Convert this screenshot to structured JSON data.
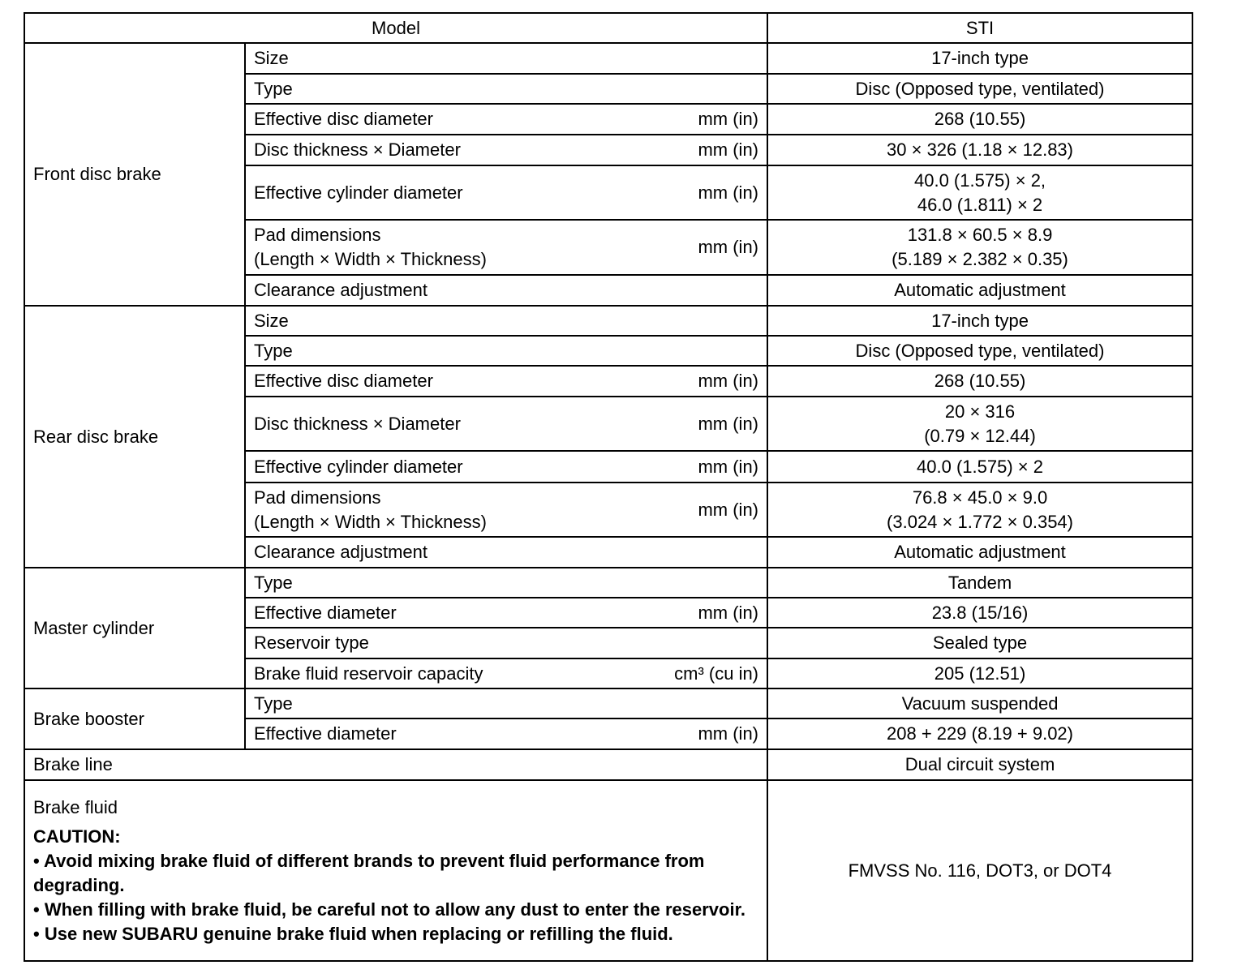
{
  "header": {
    "model_label": "Model",
    "model_value": "STI"
  },
  "sections": [
    {
      "group": "Front disc brake",
      "rows": [
        {
          "label": "Size",
          "unit": "",
          "value": "17-inch type",
          "h": 38
        },
        {
          "label": "Type",
          "unit": "",
          "value": "Disc (Opposed type, ventilated)",
          "h": 37
        },
        {
          "label": "Effective disc diameter",
          "unit": "mm (in)",
          "value": "268 (10.55)",
          "h": 38
        },
        {
          "label": "Disc thickness × Diameter",
          "unit": "mm (in)",
          "value": "30 × 326 (1.18 × 12.83)",
          "h": 38
        },
        {
          "label": "Effective cylinder diameter",
          "unit": "mm (in)",
          "value": "40.0 (1.575) × 2,\n46.0 (1.811) × 2",
          "h": 67
        },
        {
          "label": "Pad dimensions\n(Length × Width × Thickness)",
          "unit": "mm (in)",
          "value": "131.8 × 60.5 × 8.9\n(5.189 × 2.382 × 0.35)",
          "h": 68
        },
        {
          "label": "Clearance adjustment",
          "unit": "",
          "value": "Automatic adjustment",
          "h": 38
        }
      ]
    },
    {
      "group": "Rear disc brake",
      "rows": [
        {
          "label": "Size",
          "unit": "",
          "value": "17-inch type",
          "h": 37
        },
        {
          "label": "Type",
          "unit": "",
          "value": "Disc (Opposed type, ventilated)",
          "h": 37
        },
        {
          "label": "Effective disc diameter",
          "unit": "mm (in)",
          "value": "268 (10.55)",
          "h": 38
        },
        {
          "label": "Disc thickness × Diameter",
          "unit": "mm (in)",
          "value": "20 × 316\n(0.79 × 12.44)",
          "h": 67
        },
        {
          "label": "Effective cylinder diameter",
          "unit": "mm (in)",
          "value": "40.0 (1.575) × 2",
          "h": 39
        },
        {
          "label": "Pad dimensions\n(Length × Width × Thickness)",
          "unit": "mm (in)",
          "value": "76.8 × 45.0 × 9.0\n(3.024 × 1.772 × 0.354)",
          "h": 67
        },
        {
          "label": "Clearance adjustment",
          "unit": "",
          "value": "Automatic adjustment",
          "h": 38
        }
      ]
    },
    {
      "group": "Master cylinder",
      "rows": [
        {
          "label": "Type",
          "unit": "",
          "value": "Tandem",
          "h": 37
        },
        {
          "label": "Effective diameter",
          "unit": "mm (in)",
          "value": "23.8 (15/16)",
          "h": 37
        },
        {
          "label": "Reservoir type",
          "unit": "",
          "value": "Sealed type",
          "h": 38
        },
        {
          "label": "Brake fluid reservoir capacity",
          "unit": "cm³ (cu in)",
          "value": "205 (12.51)",
          "h": 37
        }
      ]
    },
    {
      "group": "Brake booster",
      "rows": [
        {
          "label": "Type",
          "unit": "",
          "value": "Vacuum suspended",
          "h": 37
        },
        {
          "label": "Effective diameter",
          "unit": "mm (in)",
          "value": "208 + 229 (8.19 + 9.02)",
          "h": 38
        }
      ]
    }
  ],
  "brake_line": {
    "label": "Brake line",
    "value": "Dual circuit system"
  },
  "brake_fluid": {
    "label": "Brake fluid",
    "caution_title": "CAUTION:",
    "cautions": [
      "•  Avoid mixing brake fluid of different brands to prevent fluid performance from degrading.",
      "•  When filling with brake fluid, be careful not to allow any dust to enter the reservoir.",
      "•  Use new SUBARU genuine brake fluid when replacing or refilling the fluid."
    ],
    "value": "FMVSS No. 116, DOT3, or DOT4"
  }
}
